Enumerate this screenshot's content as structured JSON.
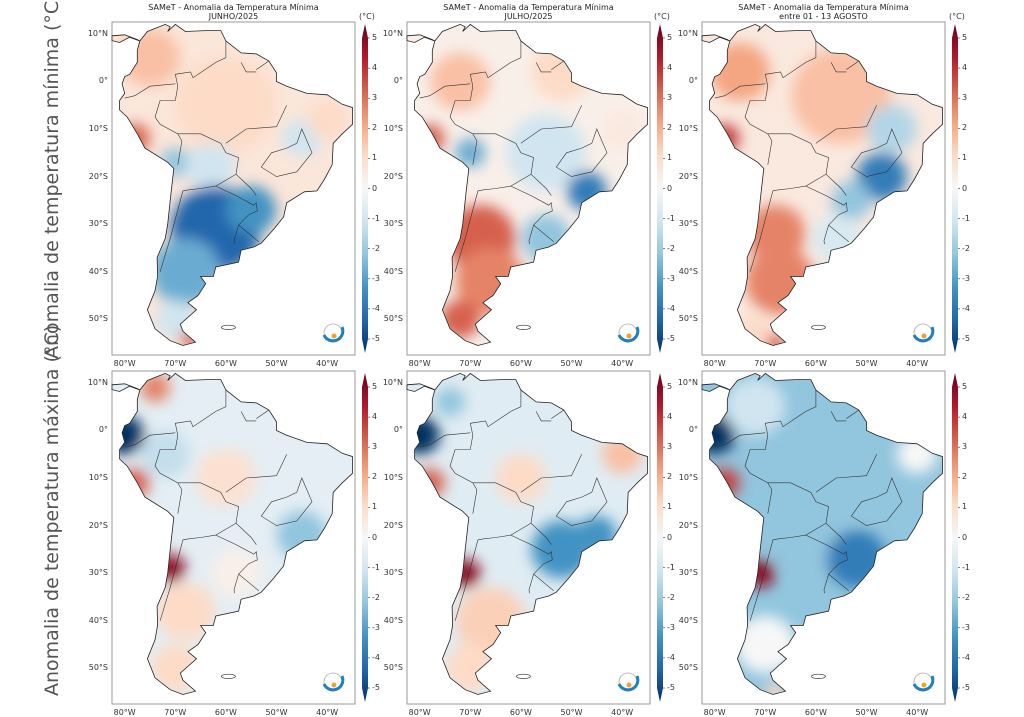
{
  "row_labels": [
    "Anomalia de temperatura mínima (°C)",
    "Anomalia de temperatura máxima (°C)"
  ],
  "panels": [
    {
      "title": "SAMeT - Anomalia da Temperatura Mínima",
      "subtitle": "JUNHO/2025",
      "unit": "(°C)"
    },
    {
      "title": "SAMeT - Anomalia da Temperatura Mínima",
      "subtitle": "JULHO/2025",
      "unit": "(°C)"
    },
    {
      "title": "SAMeT - Anomalia da Temperatura Mínima",
      "subtitle": "entre 01 - 13 AGOSTO",
      "unit": "(°C)"
    },
    {
      "title": "",
      "subtitle": "",
      "unit": ""
    },
    {
      "title": "",
      "subtitle": "",
      "unit": ""
    },
    {
      "title": "",
      "subtitle": "",
      "unit": ""
    }
  ],
  "lat_ticks": [
    "10°N",
    "0°",
    "10°S",
    "20°S",
    "30°S",
    "40°S",
    "50°S"
  ],
  "lon_ticks": [
    "80°W",
    "70°W",
    "60°W",
    "50°W",
    "40°W"
  ],
  "colorbar": {
    "ticks": [
      "5",
      "4",
      "3",
      "2",
      "1",
      "0",
      "-1",
      "-2",
      "-3",
      "-4",
      "-5"
    ],
    "range": [
      -5,
      5
    ],
    "extend": "both",
    "colormap": [
      "#053061",
      "#2166ac",
      "#4393c3",
      "#92c5de",
      "#d1e5f0",
      "#f7f7f7",
      "#fddbc7",
      "#f4a582",
      "#d6604d",
      "#b2182b",
      "#67001f"
    ]
  },
  "logo": "cptec-inpe-logo"
}
